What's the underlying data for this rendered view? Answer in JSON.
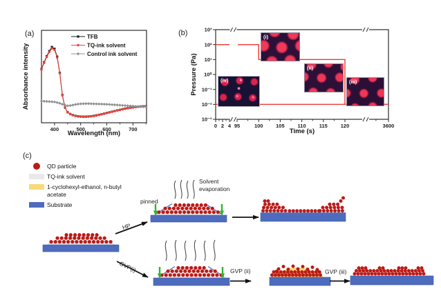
{
  "panels": {
    "a": {
      "label": "(a)"
    },
    "b": {
      "label": "(b)"
    },
    "c": {
      "label": "(c)"
    }
  },
  "chart_data": [
    {
      "id": "absorbance-spectra",
      "type": "line",
      "title": "",
      "xlabel": "Wavelength (nm)",
      "ylabel": "Absorbance intensity",
      "xlim": [
        350,
        752
      ],
      "ylim": [
        0,
        1
      ],
      "x_ticks": [
        400,
        500,
        600,
        700
      ],
      "x_minor_ticks": [
        450,
        550,
        650,
        750
      ],
      "grid": false,
      "legend_position": "upper left",
      "x_start": 350,
      "x_step": 10,
      "series": [
        {
          "name": "TFB",
          "color": "#1a1a1a",
          "marker": "square",
          "values": [
            0.58,
            0.655,
            0.72,
            0.775,
            0.82,
            0.8,
            0.715,
            0.54,
            0.3,
            0.165,
            0.115,
            0.095,
            0.083,
            0.075,
            0.07,
            0.067,
            0.066,
            0.066,
            0.068,
            0.071,
            0.075,
            0.08,
            0.086,
            0.092,
            0.099,
            0.106,
            0.113,
            0.12,
            0.127,
            0.134,
            0.14,
            0.147,
            0.153,
            0.158,
            0.163,
            0.167,
            0.171,
            0.174,
            0.176,
            0.178,
            0.179
          ]
        },
        {
          "name": "TQ-ink solvent",
          "color": "#e8423d",
          "marker": "circle",
          "values": [
            0.575,
            0.648,
            0.712,
            0.765,
            0.805,
            0.788,
            0.705,
            0.535,
            0.295,
            0.162,
            0.112,
            0.093,
            0.081,
            0.073,
            0.068,
            0.065,
            0.064,
            0.064,
            0.066,
            0.069,
            0.073,
            0.078,
            0.084,
            0.09,
            0.097,
            0.104,
            0.111,
            0.118,
            0.125,
            0.132,
            0.138,
            0.145,
            0.151,
            0.156,
            0.161,
            0.165,
            0.169,
            0.172,
            0.174,
            0.176,
            0.177
          ]
        },
        {
          "name": "Control ink solvent",
          "color": "#8f8f8f",
          "marker": "diamond",
          "values": [
            0.235,
            0.233,
            0.231,
            0.229,
            0.227,
            0.225,
            0.219,
            0.211,
            0.2,
            0.19,
            0.184,
            0.186,
            0.192,
            0.198,
            0.202,
            0.205,
            0.206,
            0.207,
            0.207,
            0.206,
            0.205,
            0.204,
            0.203,
            0.202,
            0.201,
            0.2,
            0.198,
            0.196,
            0.194,
            0.192,
            0.19,
            0.188,
            0.186,
            0.184,
            0.182,
            0.18,
            0.178,
            0.176,
            0.175,
            0.173,
            0.172
          ]
        }
      ]
    },
    {
      "id": "pressure-profile",
      "type": "step-line",
      "title": "",
      "xlabel": "Time (s)",
      "ylabel": "Pressure (Pa)",
      "y_scale": "log",
      "ylim_exponents": [
        -3,
        3
      ],
      "y_tick_labels": [
        "10³",
        "10²",
        "10¹",
        "10⁰",
        "10⁻¹",
        "10⁻²",
        "10⁻³"
      ],
      "x_ticks": [
        0,
        2,
        4,
        95,
        100,
        105,
        110,
        115,
        120,
        3600
      ],
      "x_axis_breaks": [
        [
          4,
          95
        ],
        [
          120,
          3600
        ]
      ],
      "color": "#ed3a30",
      "steps": [
        {
          "t_start": 0,
          "t_end": 100,
          "pressure_pa": 100
        },
        {
          "t_start": 100,
          "t_end": 120,
          "pressure_pa": 10
        },
        {
          "t_start": 120,
          "t_end": 3600,
          "pressure_pa": 0.01
        }
      ],
      "baseline_pa": 0.01,
      "insets": [
        {
          "label": "(i)"
        },
        {
          "label": "(ii)"
        },
        {
          "label": "(iii)"
        },
        {
          "label": "(iv)"
        }
      ]
    }
  ],
  "panel_c": {
    "legend": [
      {
        "swatch": "circle",
        "color": "#bc1a17",
        "label": "QD particle"
      },
      {
        "swatch": "rect",
        "color": "#e9e9e9",
        "label": "TQ-ink solvent"
      },
      {
        "swatch": "rect",
        "color": "#f8da7a",
        "label": "1-cyclohexyl-ethanol, n-butyl acetate"
      },
      {
        "swatch": "rect",
        "color": "#4e6cbe",
        "label": "Substrate"
      }
    ],
    "labels": {
      "pinned": "pinned",
      "solvent_line1": "Solvent",
      "solvent_line2": "evaporation",
      "hp": "HP",
      "gvp_i": "GVP(i)",
      "gvp_ii": "GVP (ii)",
      "gvp_iii": "GVP (iii)"
    }
  }
}
